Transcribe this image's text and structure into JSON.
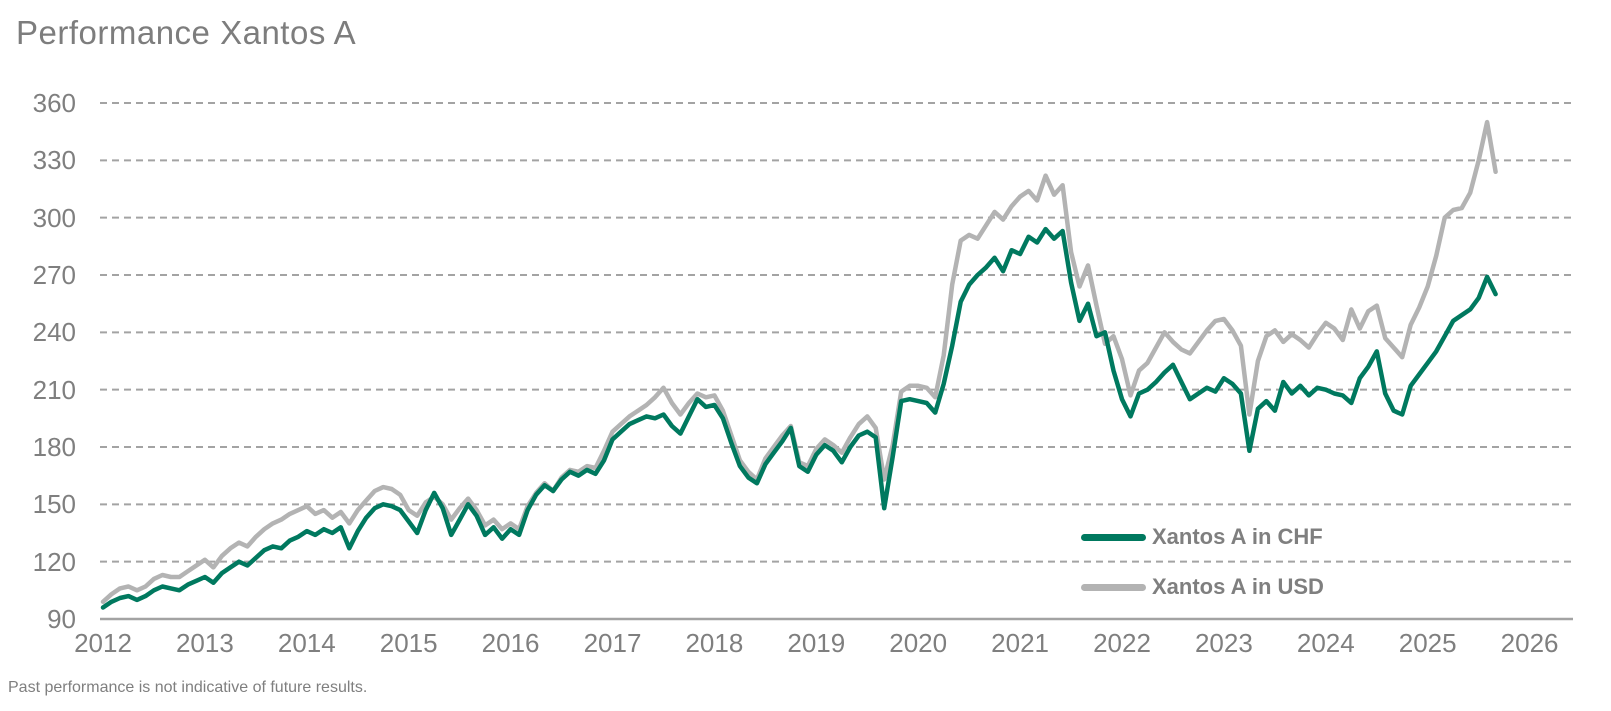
{
  "title": "Performance Xantos A",
  "footnote": "Past performance is not indicative of future results.",
  "colors": {
    "chf_line": "#00795f",
    "usd_line": "#b3b3b3",
    "grid": "#a3a3a3",
    "axis_text": "#7f7f7f",
    "title_text": "#7d7d7d"
  },
  "legend": {
    "items": [
      {
        "label": "Xantos A in CHF",
        "color": "#00795f"
      },
      {
        "label": "Xantos A in USD",
        "color": "#b3b3b3"
      }
    ]
  },
  "chart_data": {
    "type": "line",
    "title": "Performance Xantos A",
    "xlabel": "",
    "ylabel": "",
    "xlim": [
      2012,
      2026.45
    ],
    "ylim": [
      90,
      360
    ],
    "grid": "horizontal-dashed",
    "legend_position": "inside-lower-right",
    "x_ticks": [
      2012,
      2013,
      2014,
      2015,
      2016,
      2017,
      2018,
      2019,
      2020,
      2021,
      2022,
      2023,
      2024,
      2025,
      2026
    ],
    "y_ticks": [
      360,
      330,
      300,
      270,
      240,
      210,
      180,
      150,
      120,
      90
    ],
    "x_start_year": 2012,
    "points_per_year": 12,
    "series": [
      {
        "name": "Xantos A in CHF",
        "color": "#00795f",
        "values": [
          96,
          99,
          101,
          102,
          100,
          102,
          105,
          107,
          106,
          105,
          108,
          110,
          112,
          109,
          114,
          117,
          120,
          118,
          122,
          126,
          128,
          127,
          131,
          133,
          136,
          134,
          137,
          135,
          138,
          127,
          136,
          143,
          148,
          150,
          149,
          147,
          141,
          135,
          147,
          156,
          148,
          134,
          142,
          150,
          144,
          134,
          138,
          132,
          137,
          134,
          147,
          155,
          160,
          157,
          163,
          167,
          165,
          168,
          166,
          173,
          184,
          188,
          192,
          194,
          196,
          195,
          197,
          191,
          187,
          196,
          205,
          201,
          202,
          195,
          182,
          170,
          164,
          161,
          171,
          177,
          183,
          190,
          170,
          167,
          176,
          181,
          178,
          172,
          180,
          186,
          188,
          185,
          148,
          175,
          204,
          205,
          204,
          203,
          198,
          213,
          233,
          256,
          265,
          270,
          274,
          279,
          272,
          283,
          281,
          290,
          287,
          294,
          289,
          293,
          266,
          246,
          255,
          238,
          240,
          220,
          205,
          196,
          208,
          210,
          214,
          219,
          223,
          214,
          205,
          208,
          211,
          209,
          216,
          213,
          208,
          178,
          200,
          204,
          199,
          214,
          208,
          212,
          207,
          211,
          210,
          208,
          207,
          203,
          216,
          222,
          230,
          208,
          199,
          197,
          212,
          218,
          224,
          230,
          238,
          246,
          249,
          252,
          258,
          269,
          260
        ]
      },
      {
        "name": "Xantos A in USD",
        "color": "#b3b3b3",
        "values": [
          99,
          103,
          106,
          107,
          105,
          107,
          111,
          113,
          112,
          112,
          115,
          118,
          121,
          117,
          123,
          127,
          130,
          128,
          133,
          137,
          140,
          142,
          145,
          147,
          149,
          145,
          147,
          143,
          146,
          140,
          147,
          152,
          157,
          159,
          158,
          155,
          147,
          144,
          151,
          154,
          150,
          142,
          148,
          153,
          147,
          139,
          142,
          137,
          140,
          137,
          149,
          156,
          161,
          157,
          164,
          168,
          167,
          170,
          169,
          178,
          188,
          192,
          196,
          199,
          202,
          206,
          211,
          203,
          197,
          203,
          208,
          206,
          207,
          199,
          186,
          173,
          167,
          163,
          174,
          180,
          186,
          191,
          172,
          170,
          179,
          184,
          181,
          177,
          185,
          192,
          196,
          190,
          163,
          181,
          209,
          212,
          212,
          211,
          206,
          228,
          265,
          288,
          291,
          289,
          296,
          303,
          299,
          306,
          311,
          314,
          309,
          322,
          312,
          317,
          282,
          264,
          275,
          254,
          234,
          238,
          226,
          207,
          220,
          224,
          232,
          240,
          235,
          231,
          229,
          235,
          241,
          246,
          247,
          241,
          233,
          197,
          225,
          238,
          241,
          235,
          239,
          236,
          232,
          239,
          245,
          242,
          236,
          252,
          242,
          251,
          254,
          237,
          232,
          227,
          244,
          253,
          264,
          280,
          300,
          304,
          305,
          313,
          330,
          350,
          324
        ]
      }
    ]
  }
}
